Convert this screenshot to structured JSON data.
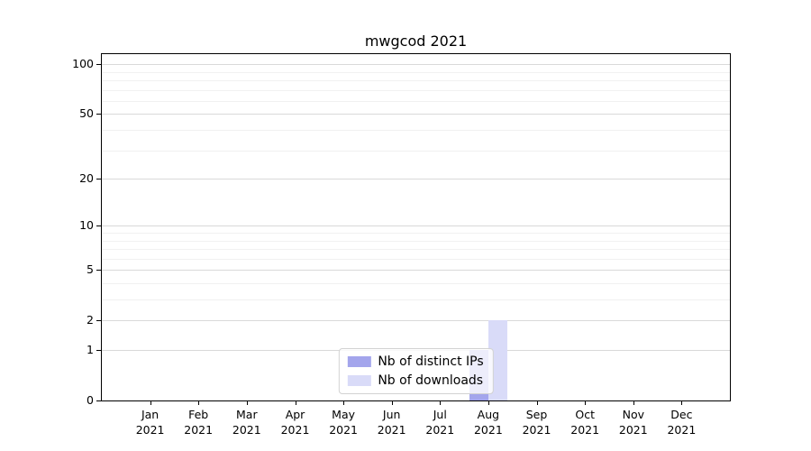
{
  "chart_data": {
    "type": "bar",
    "title": "mwgcod 2021",
    "x_tick_months": [
      "Jan",
      "Feb",
      "Mar",
      "Apr",
      "May",
      "Jun",
      "Jul",
      "Aug",
      "Sep",
      "Oct",
      "Nov",
      "Dec"
    ],
    "x_tick_year": "2021",
    "series": [
      {
        "name": "Nb of distinct IPs",
        "color": "#a3a5ec",
        "values": [
          0,
          0,
          0,
          0,
          0,
          0,
          0,
          1,
          0,
          0,
          0,
          0
        ]
      },
      {
        "name": "Nb of downloads",
        "color": "#d9dbf8",
        "values": [
          0,
          0,
          0,
          0,
          0,
          0,
          0,
          2,
          0,
          0,
          0,
          0
        ]
      }
    ],
    "y_axis": {
      "scale": "log10(value+1)",
      "major_ticks": [
        0,
        1,
        2,
        5,
        10,
        20,
        50,
        100
      ],
      "minor_gridlines": [
        3,
        4,
        6,
        7,
        8,
        9,
        30,
        40,
        60,
        70,
        80,
        90
      ],
      "range_top": 114
    },
    "legend_position": "lower center",
    "colors": {
      "major_grid": "#d9d9d9",
      "minor_grid": "#f1f1f1",
      "axis": "#000000"
    }
  }
}
